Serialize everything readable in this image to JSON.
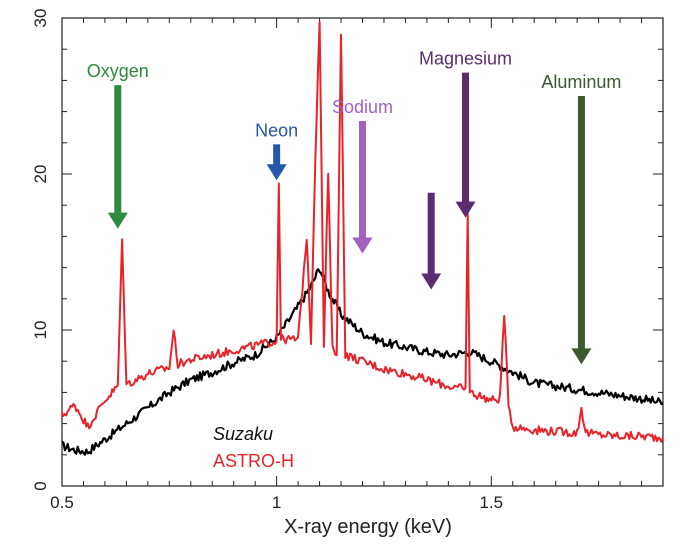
{
  "chart_data": {
    "type": "line",
    "title": "",
    "xlabel": "X-ray energy (keV)",
    "ylabel": "",
    "xlim": [
      0.5,
      1.9
    ],
    "ylim": [
      0,
      30
    ],
    "x_ticks": [
      0.5,
      1,
      1.5
    ],
    "x_tick_labels": [
      "0.5",
      "1",
      "1.5"
    ],
    "y_ticks": [
      0,
      10,
      20,
      30
    ],
    "y_tick_labels": [
      "0",
      "10",
      "20",
      "30"
    ],
    "grid": false,
    "legend": {
      "placement": "bottom-left",
      "entries": [
        "Suzaku",
        "ASTRO-H"
      ]
    },
    "series": [
      {
        "name": "Suzaku",
        "color": "#000000",
        "x": [
          0.5,
          0.53,
          0.56,
          0.6,
          0.65,
          0.7,
          0.75,
          0.8,
          0.85,
          0.9,
          0.95,
          1.0,
          1.05,
          1.08,
          1.1,
          1.12,
          1.15,
          1.2,
          1.25,
          1.3,
          1.35,
          1.4,
          1.45,
          1.5,
          1.55,
          1.6,
          1.65,
          1.7,
          1.75,
          1.8,
          1.85,
          1.9
        ],
        "y": [
          2.6,
          2.3,
          2.2,
          3.0,
          4.0,
          5.0,
          6.0,
          6.8,
          7.3,
          7.9,
          8.4,
          9.5,
          11.5,
          12.8,
          14.0,
          12.5,
          11.0,
          9.8,
          9.2,
          8.9,
          8.6,
          8.4,
          8.6,
          8.0,
          7.3,
          6.6,
          6.4,
          6.2,
          6.0,
          5.8,
          5.6,
          5.3
        ]
      },
      {
        "name": "ASTRO-H",
        "color": "#e8232a",
        "x": [
          0.5,
          0.53,
          0.56,
          0.6,
          0.63,
          0.64,
          0.65,
          0.7,
          0.75,
          0.76,
          0.77,
          0.8,
          0.85,
          0.9,
          0.95,
          1.0,
          1.005,
          1.01,
          1.05,
          1.07,
          1.08,
          1.09,
          1.1,
          1.11,
          1.12,
          1.13,
          1.14,
          1.15,
          1.16,
          1.2,
          1.25,
          1.3,
          1.35,
          1.4,
          1.44,
          1.445,
          1.45,
          1.48,
          1.5,
          1.52,
          1.53,
          1.54,
          1.55,
          1.6,
          1.65,
          1.7,
          1.71,
          1.72,
          1.75,
          1.8,
          1.85,
          1.9
        ],
        "y": [
          4.5,
          5.2,
          3.8,
          5.5,
          6.4,
          15.8,
          6.5,
          7.2,
          7.6,
          10.0,
          7.8,
          8.1,
          8.4,
          8.7,
          9.0,
          9.3,
          19.5,
          9.4,
          9.4,
          16.0,
          9.2,
          21.0,
          30.0,
          9.0,
          20.0,
          8.8,
          8.6,
          29.0,
          8.4,
          8.0,
          7.5,
          7.2,
          6.8,
          6.4,
          6.2,
          17.5,
          6.0,
          5.7,
          5.5,
          5.6,
          11.0,
          5.4,
          3.8,
          3.6,
          3.5,
          3.4,
          5.0,
          3.4,
          3.3,
          3.2,
          3.2,
          3.1
        ]
      }
    ],
    "annotations": [
      {
        "text": "Oxygen",
        "color": "#2e8b3e",
        "arrow_x": 0.63,
        "arrow_y_top": 25.7,
        "arrow_y_bottom": 16.5
      },
      {
        "text": "Neon",
        "color": "#2458a8",
        "arrow_x": 1.0,
        "arrow_y_top": 21.9,
        "arrow_y_bottom": 19.6
      },
      {
        "text": "Sodium",
        "color": "#a45fbf",
        "arrow_x": 1.2,
        "arrow_y_top": 23.4,
        "arrow_y_bottom": 14.9
      },
      {
        "text": "Magnesium",
        "color": "#5a2d6e",
        "arrow_x": 1.44,
        "arrow_y_top": 26.5,
        "arrow_y_bottom": 17.2
      },
      {
        "text": "",
        "color": "#5a2d6e",
        "arrow_x": 1.36,
        "arrow_y_top": 18.8,
        "arrow_y_bottom": 12.6
      },
      {
        "text": "Aluminum",
        "color": "#3b5a2e",
        "arrow_x": 1.71,
        "arrow_y_top": 25.0,
        "arrow_y_bottom": 7.8
      }
    ]
  }
}
